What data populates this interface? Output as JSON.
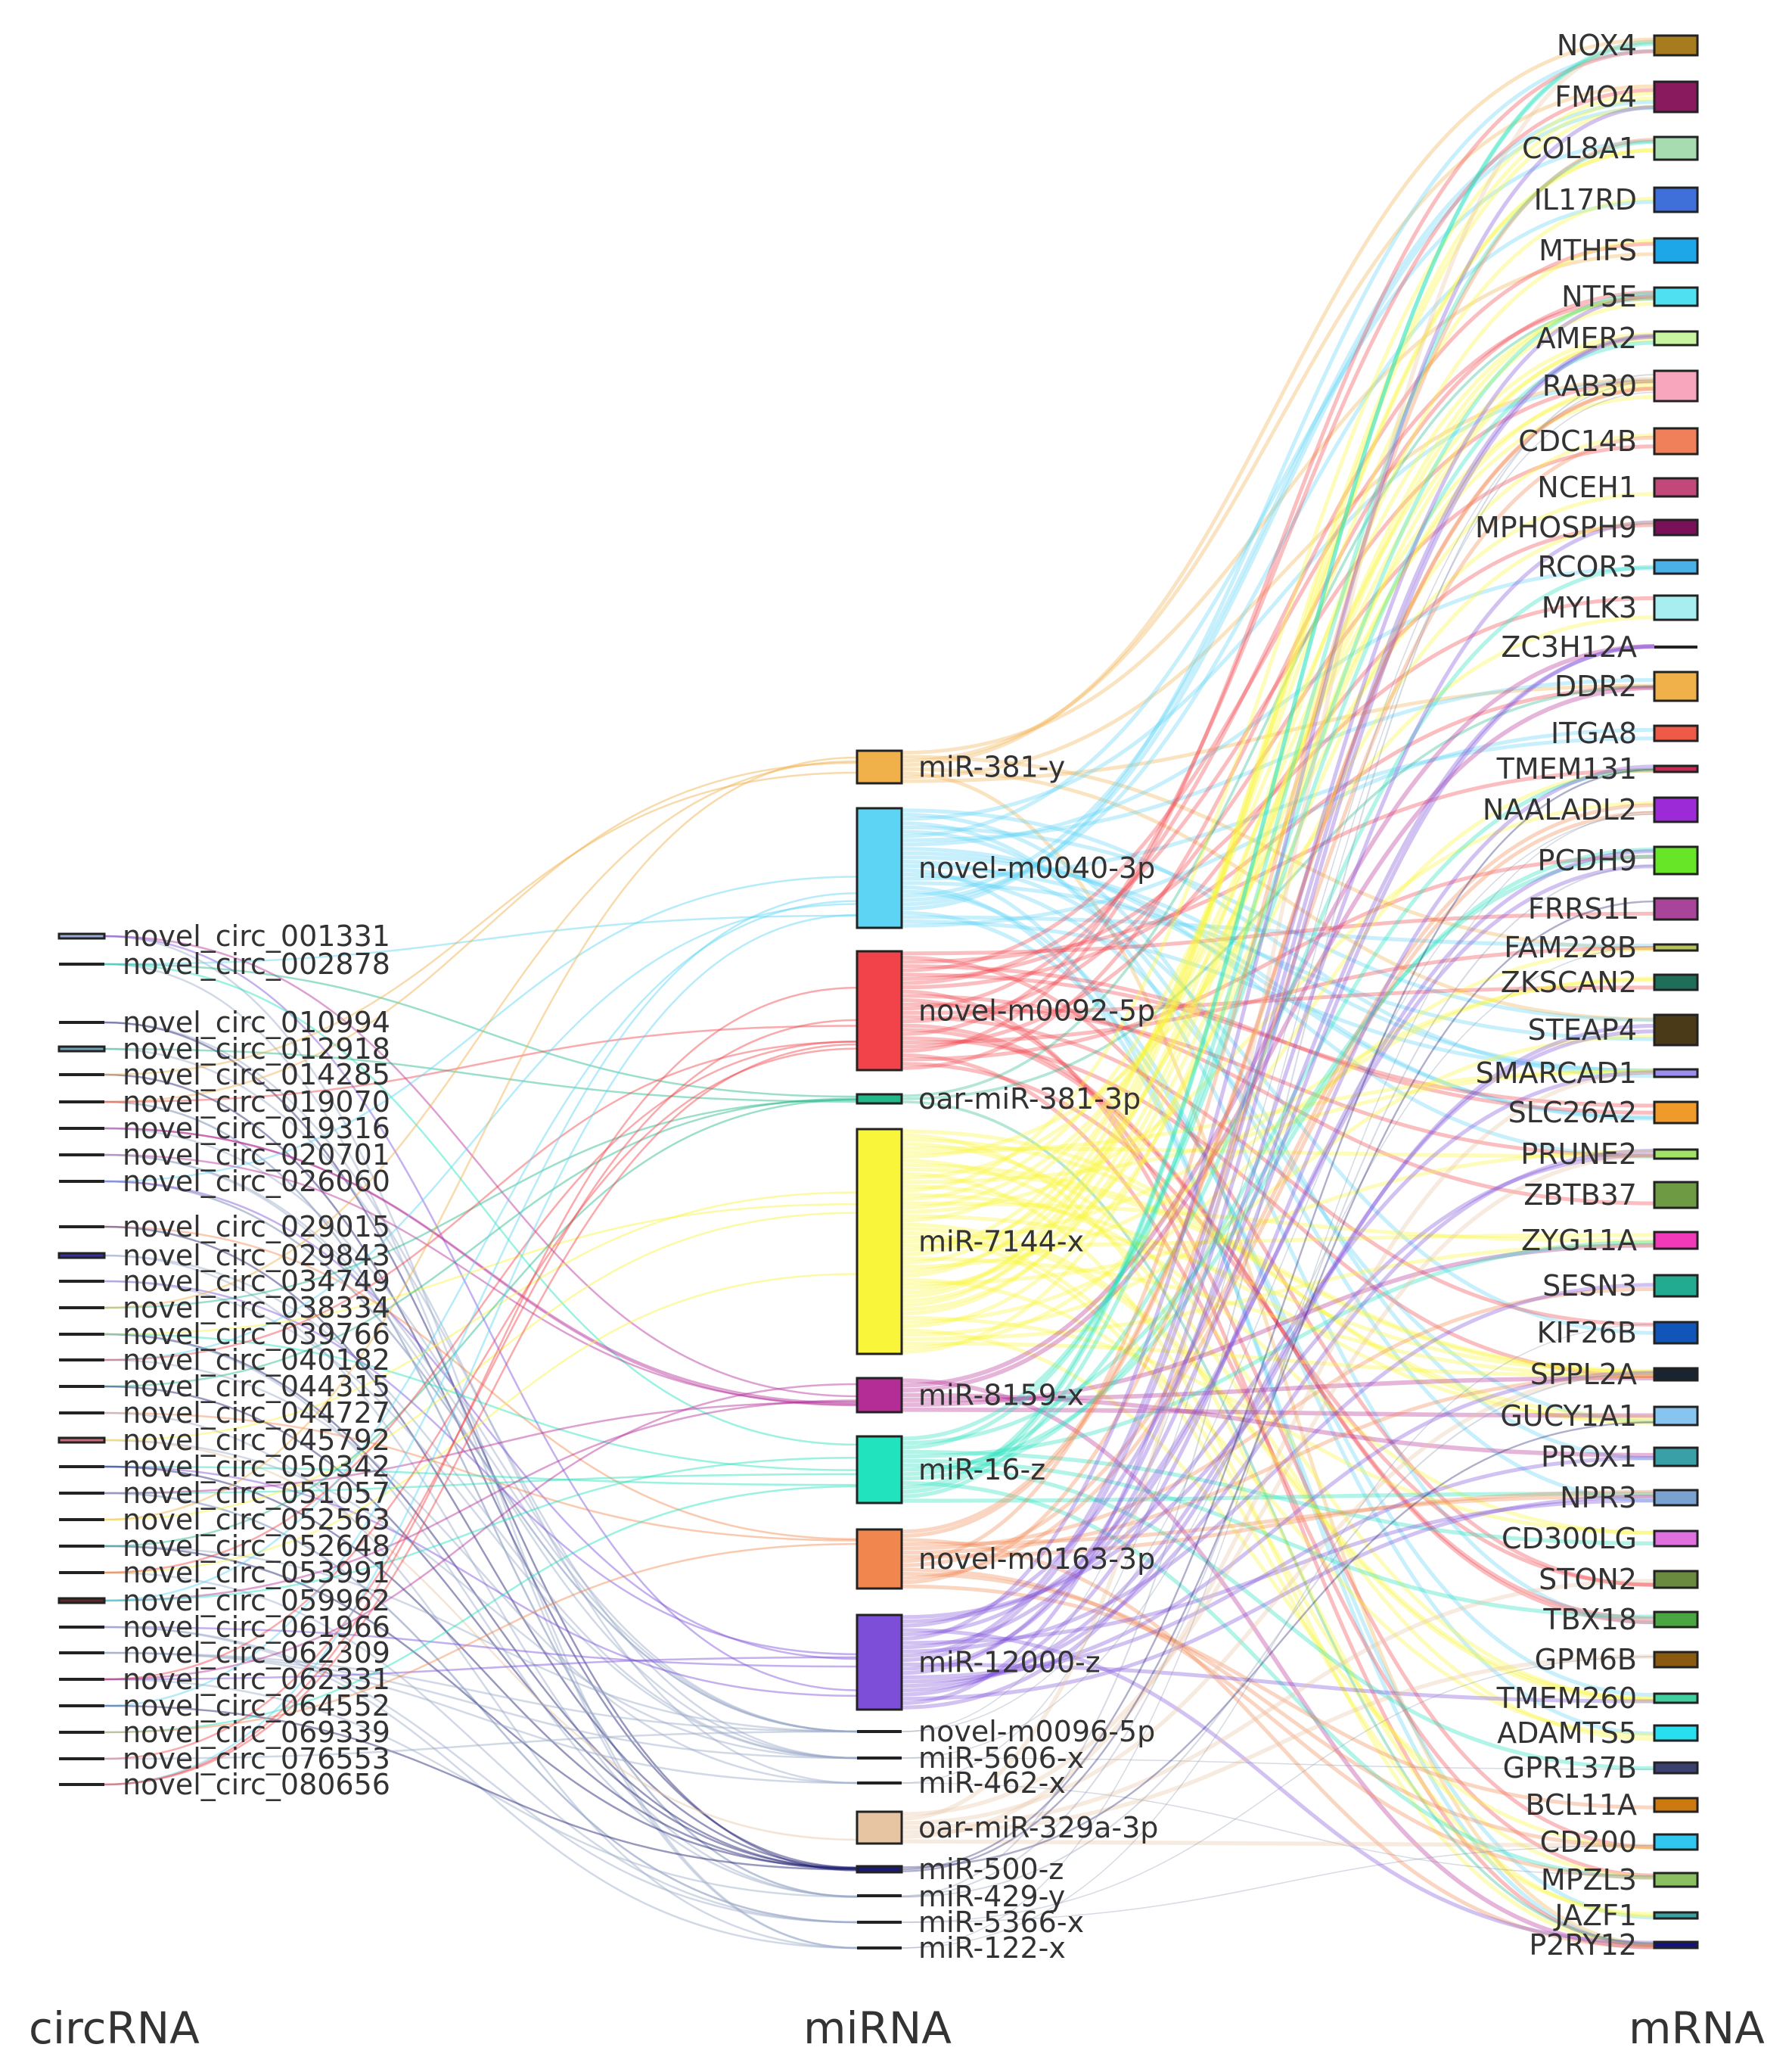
{
  "chart_data": {
    "type": "sankey",
    "columns": [
      "circRNA",
      "miRNA",
      "mRNA"
    ],
    "circrna": [
      {
        "name": "novel_circ_001331",
        "color": "#9aaad6"
      },
      {
        "name": "novel_circ_002878",
        "color": "#2b2b2b"
      },
      {
        "name": "novel_circ_010994",
        "color": "#2b2b2b"
      },
      {
        "name": "novel_circ_012918",
        "color": "#6fa3b8"
      },
      {
        "name": "novel_circ_014285",
        "color": "#2b2b2b"
      },
      {
        "name": "novel_circ_019070",
        "color": "#2b2b2b"
      },
      {
        "name": "novel_circ_019316",
        "color": "#2b2b2b"
      },
      {
        "name": "novel_circ_020701",
        "color": "#2b2b2b"
      },
      {
        "name": "novel_circ_026060",
        "color": "#2b2b2b"
      },
      {
        "name": "novel_circ_029015",
        "color": "#2b2b2b"
      },
      {
        "name": "novel_circ_029843",
        "color": "#3a2f9e"
      },
      {
        "name": "novel_circ_034749",
        "color": "#2b2b2b"
      },
      {
        "name": "novel_circ_038334",
        "color": "#2b2b2b"
      },
      {
        "name": "novel_circ_039766",
        "color": "#2b2b2b"
      },
      {
        "name": "novel_circ_040182",
        "color": "#2b2b2b"
      },
      {
        "name": "novel_circ_044315",
        "color": "#2b2b2b"
      },
      {
        "name": "novel_circ_044727",
        "color": "#2b2b2b"
      },
      {
        "name": "novel_circ_045792",
        "color": "#c96b7a"
      },
      {
        "name": "novel_circ_050342",
        "color": "#2b2b2b"
      },
      {
        "name": "novel_circ_051057",
        "color": "#2b2b2b"
      },
      {
        "name": "novel_circ_052563",
        "color": "#2b2b2b"
      },
      {
        "name": "novel_circ_052648",
        "color": "#2b2b2b"
      },
      {
        "name": "novel_circ_053991",
        "color": "#2b2b2b"
      },
      {
        "name": "novel_circ_059962",
        "color": "#5a2a2a"
      },
      {
        "name": "novel_circ_061966",
        "color": "#2b2b2b"
      },
      {
        "name": "novel_circ_062309",
        "color": "#2b2b2b"
      },
      {
        "name": "novel_circ_062331",
        "color": "#2b2b2b"
      },
      {
        "name": "novel_circ_064552",
        "color": "#2b2b2b"
      },
      {
        "name": "novel_circ_069339",
        "color": "#2b2b2b"
      },
      {
        "name": "novel_circ_076553",
        "color": "#2b2b2b"
      },
      {
        "name": "novel_circ_080656",
        "color": "#2b2b2b"
      }
    ],
    "mirna": [
      {
        "name": "miR-381-y",
        "color": "#f0b04a",
        "weight": 6
      },
      {
        "name": "novel-m0040-3p",
        "color": "#5ed4f5",
        "weight": 20
      },
      {
        "name": "novel-m0092-5p",
        "color": "#f2424a",
        "weight": 20
      },
      {
        "name": "oar-miR-381-3p",
        "color": "#22b88a",
        "weight": 1.5
      },
      {
        "name": "miR-7144-x",
        "color": "#f9f53a",
        "weight": 38
      },
      {
        "name": "miR-8159-x",
        "color": "#b42c96",
        "weight": 5
      },
      {
        "name": "miR-16-z",
        "color": "#21e3bd",
        "weight": 11
      },
      {
        "name": "novel-m0163-3p",
        "color": "#f1874f",
        "weight": 10
      },
      {
        "name": "miR-12000-z",
        "color": "#7d4fd9",
        "weight": 16
      },
      {
        "name": "novel-m0096-5p",
        "color": "#222222",
        "weight": 0
      },
      {
        "name": "miR-5606-x",
        "color": "#222222",
        "weight": 0
      },
      {
        "name": "miR-462-x",
        "color": "#222222",
        "weight": 0
      },
      {
        "name": "oar-miR-329a-3p",
        "color": "#e7c4a2",
        "weight": 5
      },
      {
        "name": "miR-500-z",
        "color": "#1a1a6e",
        "weight": 1.5
      },
      {
        "name": "miR-429-y",
        "color": "#222222",
        "weight": 0.8
      },
      {
        "name": "miR-5366-x",
        "color": "#222222",
        "weight": 0
      },
      {
        "name": "miR-122-x",
        "color": "#222222",
        "weight": 0
      }
    ],
    "mrna": [
      {
        "name": "NOX4",
        "color": "#a67c1f",
        "weight": 3.5
      },
      {
        "name": "FMO4",
        "color": "#8a1a5e",
        "weight": 5
      },
      {
        "name": "COL8A1",
        "color": "#a6dcb0",
        "weight": 4
      },
      {
        "name": "IL17RD",
        "color": "#3f6fd8",
        "weight": 4
      },
      {
        "name": "MTHFS",
        "color": "#1da7e8",
        "weight": 4
      },
      {
        "name": "NT5E",
        "color": "#4fe0f2",
        "weight": 3
      },
      {
        "name": "AMER2",
        "color": "#c9f5a0",
        "weight": 2
      },
      {
        "name": "RAB30",
        "color": "#f7a6be",
        "weight": 5
      },
      {
        "name": "CDC14B",
        "color": "#f0805a",
        "weight": 4
      },
      {
        "name": "NCEH1",
        "color": "#c2487a",
        "weight": 2.5
      },
      {
        "name": "MPHOSPH9",
        "color": "#7a1059",
        "weight": 2
      },
      {
        "name": "RCOR3",
        "color": "#4ab0e8",
        "weight": 2
      },
      {
        "name": "MYLK3",
        "color": "#a8eef0",
        "weight": 4
      },
      {
        "name": "ZC3H12A",
        "color": "#222222",
        "weight": 0
      },
      {
        "name": "DDR2",
        "color": "#f0b04a",
        "weight": 5
      },
      {
        "name": "ITGA8",
        "color": "#ef5a46",
        "weight": 2
      },
      {
        "name": "TMEM131",
        "color": "#c42a52",
        "weight": 1
      },
      {
        "name": "NAALADL2",
        "color": "#9c2ad6",
        "weight": 4
      },
      {
        "name": "PCDH9",
        "color": "#66e627",
        "weight": 4.5
      },
      {
        "name": "FRRS1L",
        "color": "#a8449a",
        "weight": 3
      },
      {
        "name": "FAM228B",
        "color": "#b8c25a",
        "weight": 1
      },
      {
        "name": "ZKSCAN2",
        "color": "#1e6e5a",
        "weight": 2
      },
      {
        "name": "STEAP4",
        "color": "#4a3a18",
        "weight": 8
      },
      {
        "name": "SMARCAD1",
        "color": "#9b8ef0",
        "weight": 1
      },
      {
        "name": "SLC26A2",
        "color": "#f09a2a",
        "weight": 3.5
      },
      {
        "name": "PRUNE2",
        "color": "#a2e066",
        "weight": 1.5
      },
      {
        "name": "ZBTB37",
        "color": "#6e9a44",
        "weight": 4
      },
      {
        "name": "ZYG11A",
        "color": "#f23ab8",
        "weight": 2.5
      },
      {
        "name": "SESN3",
        "color": "#22ab90",
        "weight": 3.5
      },
      {
        "name": "KIF26B",
        "color": "#1155b8",
        "weight": 3.5
      },
      {
        "name": "SPPL2A",
        "color": "#1a2430",
        "weight": 2
      },
      {
        "name": "GUCY1A1",
        "color": "#88c4f0",
        "weight": 3
      },
      {
        "name": "PROX1",
        "color": "#3aa0a8",
        "weight": 3
      },
      {
        "name": "NPR3",
        "color": "#7aa2d0",
        "weight": 2.5
      },
      {
        "name": "CD300LG",
        "color": "#e070e0",
        "weight": 2.5
      },
      {
        "name": "STON2",
        "color": "#6a8a40",
        "weight": 2.5
      },
      {
        "name": "TBX18",
        "color": "#4aa640",
        "weight": 2.5
      },
      {
        "name": "GPM6B",
        "color": "#8a5a10",
        "weight": 2.5
      },
      {
        "name": "TMEM260",
        "color": "#40d0a0",
        "weight": 1.5
      },
      {
        "name": "ADAMTS5",
        "color": "#28dff0",
        "weight": 2.5
      },
      {
        "name": "GPR137B",
        "color": "#3a4070",
        "weight": 1.5
      },
      {
        "name": "BCL11A",
        "color": "#cc7a10",
        "weight": 2
      },
      {
        "name": "CD200",
        "color": "#30c8f0",
        "weight": 2.5
      },
      {
        "name": "MPZL3",
        "color": "#8ac060",
        "weight": 2.5
      },
      {
        "name": "JAZF1",
        "color": "#3aa0a0",
        "weight": 1
      },
      {
        "name": "P2RY12",
        "color": "#141480",
        "weight": 1
      }
    ]
  }
}
